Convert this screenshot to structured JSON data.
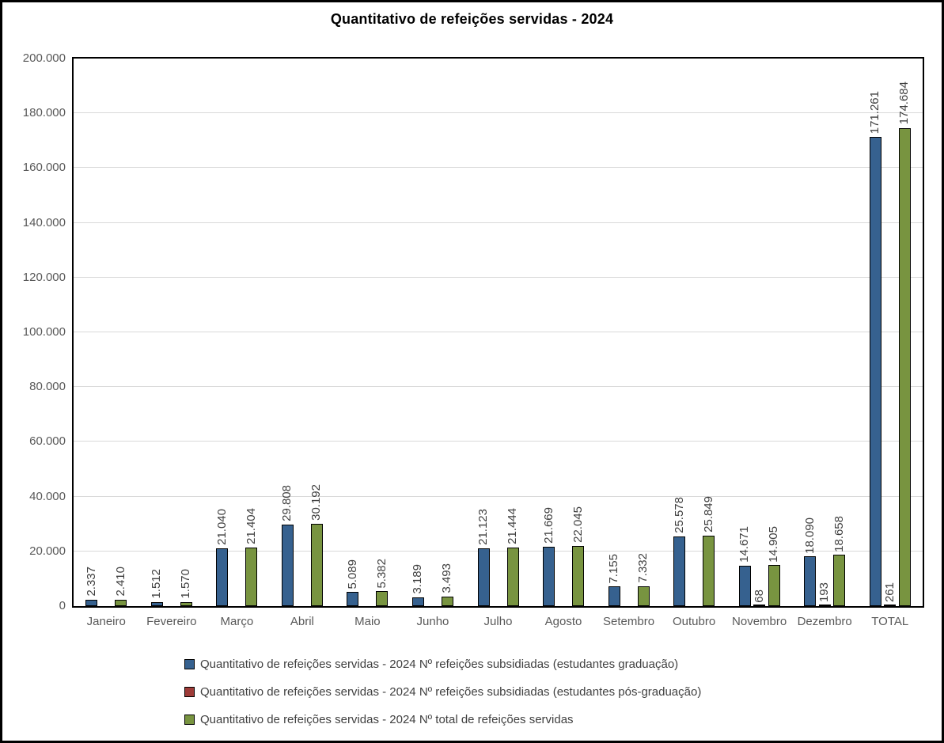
{
  "title": "Quantitativo de refeições servidas - 2024",
  "colors": {
    "background": "#ffffff",
    "frame_border": "#000000",
    "plot_border": "#000000",
    "gridline": "#d9d9d9",
    "axis_text": "#595959",
    "data_label_text": "#3f3f3f",
    "series_blue": "#36618f",
    "series_red": "#9e3b38",
    "series_green": "#789440"
  },
  "chart_data": {
    "type": "bar",
    "title": "Quantitativo de refeições servidas - 2024",
    "xlabel": "",
    "ylabel": "",
    "ylim": [
      0,
      200000
    ],
    "ytick_step": 20000,
    "ytick_labels": [
      "0",
      "20.000",
      "40.000",
      "60.000",
      "80.000",
      "100.000",
      "120.000",
      "140.000",
      "160.000",
      "180.000",
      "200.000"
    ],
    "grid": true,
    "legend_position": "bottom-left",
    "categories": [
      "Janeiro",
      "Fevereiro",
      "Março",
      "Abril",
      "Maio",
      "Junho",
      "Julho",
      "Agosto",
      "Setembro",
      "Outubro",
      "Novembro",
      "Dezembro",
      "TOTAL"
    ],
    "series": [
      {
        "key": "graduacao",
        "name": "Quantitativo de refeições servidas - 2024 Nº refeições subsidiadas (estudantes graduação)",
        "color": "#36618f",
        "values": [
          2337,
          1512,
          21040,
          29808,
          5089,
          3189,
          21123,
          21669,
          7155,
          25578,
          14671,
          18090,
          171261
        ],
        "labels": [
          "2.337",
          "1.512",
          "21.040",
          "29.808",
          "5.089",
          "3.189",
          "21.123",
          "21.669",
          "7.155",
          "25.578",
          "14.671",
          "18.090",
          "171.261"
        ]
      },
      {
        "key": "pos-graduacao",
        "name": "Quantitativo de refeições servidas - 2024 Nº refeições subsidiadas (estudantes pós-graduação)",
        "color": "#9e3b38",
        "values": [
          0,
          0,
          0,
          0,
          0,
          0,
          0,
          0,
          0,
          0,
          68,
          193,
          261
        ],
        "labels": [
          "",
          "",
          "",
          "",
          "",
          "",
          "",
          "",
          "",
          "",
          "68",
          "193",
          "261"
        ]
      },
      {
        "key": "total",
        "name": "Quantitativo de refeições servidas - 2024 Nº total de refeições servidas",
        "color": "#789440",
        "values": [
          2410,
          1570,
          21404,
          30192,
          5382,
          3493,
          21444,
          22045,
          7332,
          25849,
          14905,
          18658,
          174684
        ],
        "labels": [
          "2.410",
          "1.570",
          "21.404",
          "30.192",
          "5.382",
          "3.493",
          "21.444",
          "22.045",
          "7.332",
          "25.849",
          "14.905",
          "18.658",
          "174.684"
        ]
      }
    ]
  }
}
